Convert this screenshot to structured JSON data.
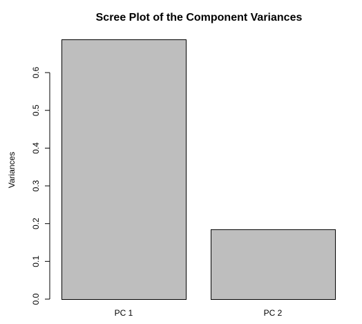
{
  "chart_data": {
    "type": "bar",
    "title": "Scree Plot of the Component Variances",
    "xlabel": "",
    "ylabel": "Variances",
    "categories": [
      "PC 1",
      "PC 2"
    ],
    "values": [
      0.688,
      0.185
    ],
    "ylim": [
      0,
      0.688
    ],
    "yticks": [
      "0.0",
      "0.1",
      "0.2",
      "0.3",
      "0.4",
      "0.5",
      "0.6"
    ],
    "ytick_values": [
      0,
      0.1,
      0.2,
      0.3,
      0.4,
      0.5,
      0.6
    ],
    "grid": false,
    "bar_color": "#bebebe",
    "bar_border": "#000000"
  }
}
